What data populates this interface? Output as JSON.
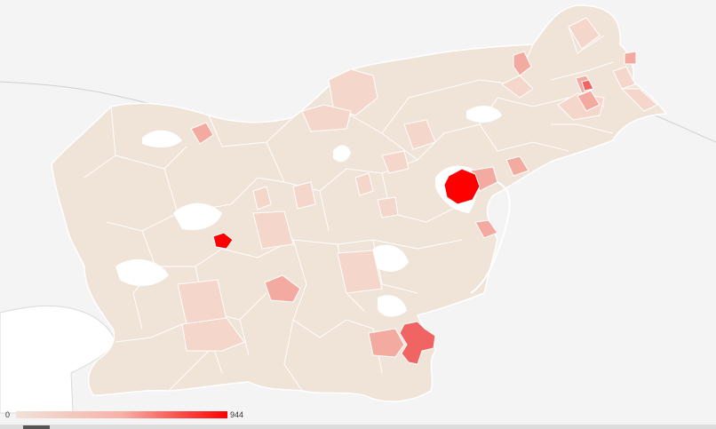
{
  "map": {
    "colors": {
      "background": "#f4f4f4",
      "outside": "#ffffff",
      "municipality_base": "#f0e3d8",
      "municipality_light": "#f4d6cb",
      "municipality_mid": "#f3aaa1",
      "municipality_high": "#f47070",
      "municipality_max": "#ff0000",
      "border": "#ffffff"
    }
  },
  "legend": {
    "min_label": "0",
    "max_label": "944",
    "gradient_start": "#f2e2d8",
    "gradient_end": "#ff0000"
  }
}
